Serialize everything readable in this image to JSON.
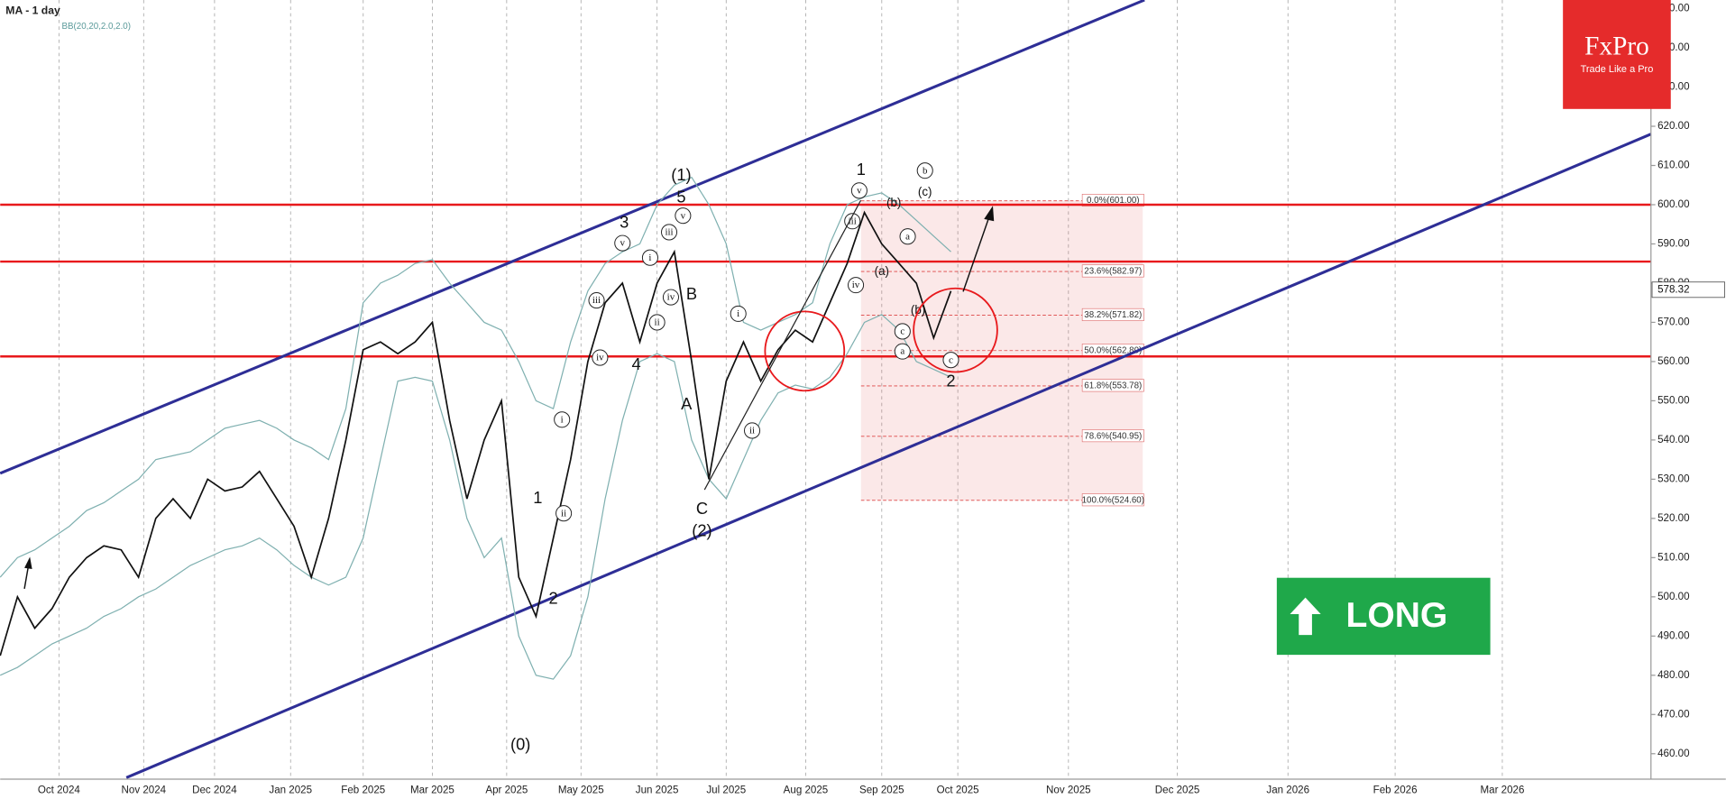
{
  "chart_data": {
    "type": "line",
    "title": "MA - 1 day",
    "subtitle": "BB(20,20,2.0,2.0)",
    "xlim": [
      0,
      95.5
    ],
    "ylim": [
      453.5,
      652.2
    ],
    "grid": true,
    "xticks": [
      {
        "value": 3.4,
        "label": "Oct 2024"
      },
      {
        "value": 8.3,
        "label": "Nov 2024"
      },
      {
        "value": 12.4,
        "label": "Dec 2024"
      },
      {
        "value": 16.8,
        "label": "Jan 2025"
      },
      {
        "value": 21.0,
        "label": "Feb 2025"
      },
      {
        "value": 25.0,
        "label": "Mar 2025"
      },
      {
        "value": 29.3,
        "label": "Apr 2025"
      },
      {
        "value": 33.6,
        "label": "May 2025"
      },
      {
        "value": 38.0,
        "label": "Jun 2025"
      },
      {
        "value": 42.0,
        "label": "Jul 2025"
      },
      {
        "value": 46.6,
        "label": "Aug 2025"
      },
      {
        "value": 51.0,
        "label": "Sep 2025"
      },
      {
        "value": 55.4,
        "label": "Oct 2025"
      },
      {
        "value": 61.8,
        "label": "Nov 2025"
      },
      {
        "value": 68.1,
        "label": "Dec 2025"
      },
      {
        "value": 74.5,
        "label": "Jan 2026"
      },
      {
        "value": 80.7,
        "label": "Feb 2026"
      },
      {
        "value": 86.9,
        "label": "Mar 2026"
      }
    ],
    "yticks": [
      {
        "value": 460,
        "label": "460.00"
      },
      {
        "value": 470,
        "label": "470.00"
      },
      {
        "value": 480,
        "label": "480.00"
      },
      {
        "value": 490,
        "label": "490.00"
      },
      {
        "value": 500,
        "label": "500.00"
      },
      {
        "value": 510,
        "label": "510.00"
      },
      {
        "value": 520,
        "label": "520.00"
      },
      {
        "value": 530,
        "label": "530.00"
      },
      {
        "value": 540,
        "label": "540.00"
      },
      {
        "value": 550,
        "label": "550.00"
      },
      {
        "value": 560,
        "label": "560.00"
      },
      {
        "value": 570,
        "label": "570.00"
      },
      {
        "value": 580,
        "label": "580.00"
      },
      {
        "value": 590,
        "label": "590.00"
      },
      {
        "value": 600,
        "label": "600.00"
      },
      {
        "value": 610,
        "label": "610.00"
      },
      {
        "value": 620,
        "label": "620.00"
      },
      {
        "value": 630,
        "label": "630.00"
      },
      {
        "value": 640,
        "label": "640.00"
      },
      {
        "value": 650,
        "label": "650.00"
      }
    ],
    "x": [
      0,
      1,
      2,
      3,
      4,
      5,
      6,
      7,
      8,
      9,
      10,
      11,
      12,
      13,
      14,
      15,
      16,
      17,
      18,
      19,
      20,
      21,
      22,
      23,
      24,
      25,
      26,
      27,
      28,
      29,
      30,
      31,
      32,
      33,
      34,
      35,
      36,
      37,
      38,
      39,
      40,
      41,
      42,
      43,
      44,
      45,
      46,
      47,
      48,
      49,
      50,
      51,
      52,
      53,
      54,
      55
    ],
    "series": [
      {
        "color": "#111111",
        "values": [
          485,
          500,
          492,
          497,
          505,
          510,
          513,
          512,
          505,
          520,
          525,
          520,
          530,
          527,
          528,
          532,
          525,
          518,
          505,
          520,
          540,
          563,
          565,
          562,
          565,
          570,
          545,
          525,
          540,
          550,
          505,
          495,
          515,
          535,
          560,
          575,
          580,
          565,
          580,
          588,
          560,
          530,
          555,
          565,
          555,
          563,
          568,
          565,
          575,
          585,
          598,
          590,
          585,
          580,
          566,
          578
        ]
      },
      {
        "color": "#7fb0b0",
        "values": [
          505,
          510,
          512,
          515,
          518,
          522,
          524,
          527,
          530,
          535,
          536,
          537,
          540,
          543,
          544,
          545,
          543,
          540,
          538,
          535,
          548,
          575,
          580,
          582,
          585,
          586,
          580,
          575,
          570,
          568,
          560,
          550,
          548,
          565,
          578,
          585,
          588,
          590,
          600,
          605,
          607,
          600,
          590,
          570,
          568,
          570,
          572,
          575,
          590,
          600,
          602,
          603,
          600,
          596,
          592,
          588
        ]
      },
      {
        "color": "#7fb0b0",
        "values": [
          480,
          482,
          485,
          488,
          490,
          492,
          495,
          497,
          500,
          502,
          505,
          508,
          510,
          512,
          513,
          515,
          512,
          508,
          505,
          503,
          505,
          515,
          535,
          555,
          556,
          555,
          540,
          520,
          510,
          515,
          490,
          480,
          479,
          485,
          500,
          525,
          545,
          560,
          562,
          560,
          540,
          530,
          525,
          535,
          545,
          552,
          554,
          553,
          556,
          562,
          570,
          572,
          568,
          560,
          558,
          556
        ]
      }
    ],
    "last_price": {
      "value": 578.32,
      "label": "578.32"
    },
    "levels": [
      {
        "value": 600,
        "color": "#e8191c"
      },
      {
        "value": 585.5,
        "color": "#e8191c"
      },
      {
        "value": 561.3,
        "color": "#e8191c"
      }
    ],
    "trend_lines": [
      {
        "color": "#2e2e96",
        "x": [
          0,
          66.2
        ],
        "values": [
          531.5,
          652.2
        ]
      },
      {
        "color": "#2e2e96",
        "x": [
          7.3,
          95.5
        ],
        "values": [
          453.9,
          618.0
        ]
      }
    ],
    "fib_x": [
      49.8,
      66.1
    ],
    "fib": [
      {
        "value": 601.0,
        "label": "0.0%(601.00)"
      },
      {
        "value": 582.97,
        "label": "23.6%(582.97)"
      },
      {
        "value": 571.82,
        "label": "38.2%(571.82)"
      },
      {
        "value": 562.8,
        "label": "50.0%(562.80)"
      },
      {
        "value": 553.78,
        "label": "61.8%(553.78)"
      },
      {
        "value": 540.95,
        "label": "78.6%(540.95)"
      },
      {
        "value": 524.6,
        "label": "100.0%(524.60)"
      }
    ],
    "annotations": [
      {
        "text": "(1)",
        "x": 39.4,
        "y": 607.3,
        "circled": false
      },
      {
        "text": "5",
        "x": 39.4,
        "y": 601.7,
        "circled": false
      },
      {
        "text": "3",
        "x": 36.1,
        "y": 595.2,
        "circled": false
      },
      {
        "text": "4",
        "x": 36.8,
        "y": 559,
        "circled": false
      },
      {
        "text": "B",
        "x": 40.0,
        "y": 577,
        "circled": false
      },
      {
        "text": "A",
        "x": 39.7,
        "y": 548.9,
        "circled": false
      },
      {
        "text": "C",
        "x": 40.6,
        "y": 522.2,
        "circled": false
      },
      {
        "text": "(2)",
        "x": 40.6,
        "y": 516.6,
        "circled": false
      },
      {
        "text": "1",
        "x": 31.1,
        "y": 525,
        "circled": false
      },
      {
        "text": "2",
        "x": 32.0,
        "y": 499.4,
        "circled": false
      },
      {
        "text": "(0)",
        "x": 30.1,
        "y": 462.1,
        "circled": false
      },
      {
        "text": "1",
        "x": 49.8,
        "y": 608.7,
        "circled": false
      },
      {
        "text": "2",
        "x": 55.0,
        "y": 554.8,
        "circled": false
      },
      {
        "text": "v",
        "x": 36.0,
        "y": 590.2,
        "circled": true
      },
      {
        "text": "iii",
        "x": 34.5,
        "y": 575.6,
        "circled": true
      },
      {
        "text": "iv",
        "x": 34.7,
        "y": 561,
        "circled": true
      },
      {
        "text": "i",
        "x": 37.6,
        "y": 586.5,
        "circled": true
      },
      {
        "text": "ii",
        "x": 38.0,
        "y": 570,
        "circled": true
      },
      {
        "text": "iv",
        "x": 38.8,
        "y": 576.4,
        "circled": true
      },
      {
        "text": "iii",
        "x": 38.7,
        "y": 593,
        "circled": true
      },
      {
        "text": "v",
        "x": 39.5,
        "y": 597.2,
        "circled": true
      },
      {
        "text": "i",
        "x": 32.5,
        "y": 545.2,
        "circled": true
      },
      {
        "text": "ii",
        "x": 32.6,
        "y": 521.3,
        "circled": true
      },
      {
        "text": "i",
        "x": 42.7,
        "y": 572.2,
        "circled": true
      },
      {
        "text": "ii",
        "x": 43.5,
        "y": 542.4,
        "circled": true
      },
      {
        "text": "v",
        "x": 49.7,
        "y": 603.6,
        "circled": true
      },
      {
        "text": "iii",
        "x": 49.3,
        "y": 595.8,
        "circled": true
      },
      {
        "text": "iv",
        "x": 49.5,
        "y": 579.5,
        "circled": true
      },
      {
        "text": "b",
        "x": 53.5,
        "y": 608.7,
        "circled": true
      },
      {
        "text": "(c)",
        "x": 53.5,
        "y": 603.1,
        "circled": false
      },
      {
        "text": "(b)",
        "x": 51.7,
        "y": 600.3,
        "circled": false
      },
      {
        "text": "a",
        "x": 52.5,
        "y": 591.9,
        "circled": true
      },
      {
        "text": "(a)",
        "x": 51.0,
        "y": 582.9,
        "circled": false
      },
      {
        "text": "(b)",
        "x": 53.1,
        "y": 573,
        "circled": false
      },
      {
        "text": "c",
        "x": 52.2,
        "y": 567.7,
        "circled": true
      },
      {
        "text": "a",
        "x": 52.2,
        "y": 562.6,
        "circled": true
      },
      {
        "text": "c",
        "x": 55.0,
        "y": 560.4,
        "circled": true
      }
    ],
    "badge": "LONG",
    "logo": {
      "name": "FxPro",
      "tagline": "Trade Like a Pro"
    }
  }
}
